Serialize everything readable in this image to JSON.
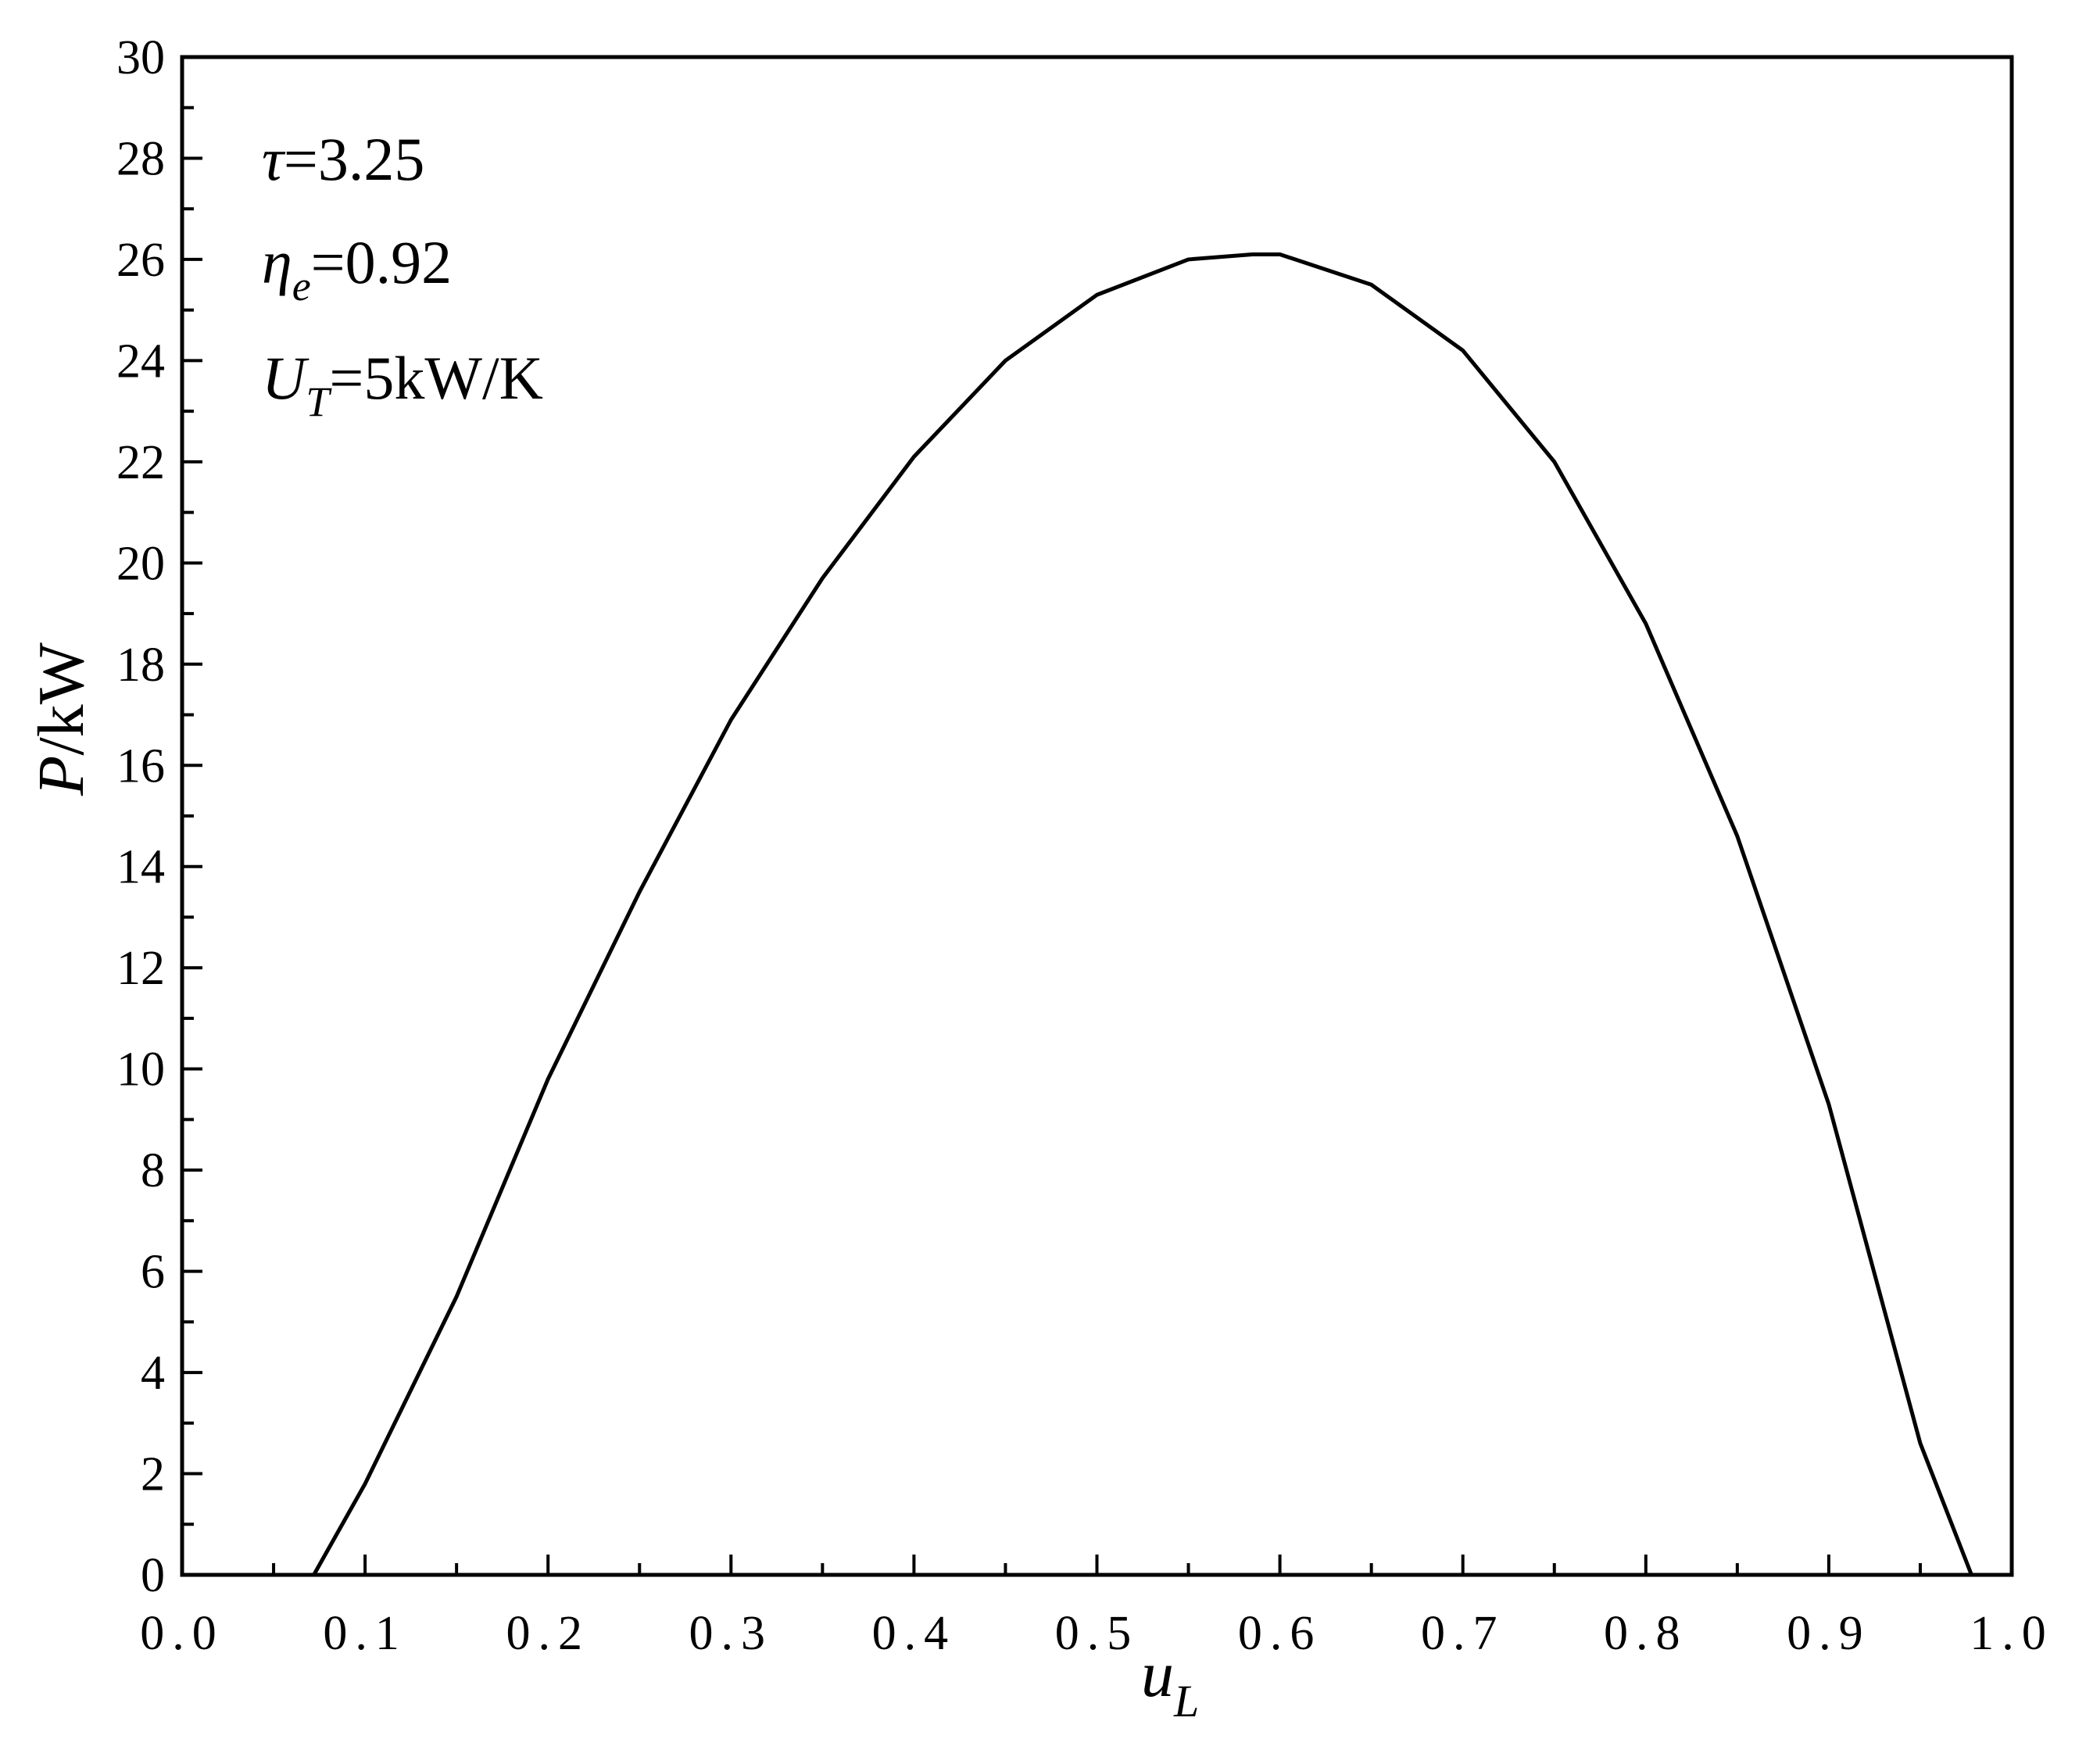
{
  "chart_data": {
    "type": "line",
    "x_label": {
      "symbol": "u",
      "subscript": "L"
    },
    "y_label": {
      "symbol": "P",
      "rest": "/kW"
    },
    "annotations": [
      {
        "symbol": "τ",
        "text": "=3.25"
      },
      {
        "symbol": "η",
        "subscript": "e",
        "text": "=0.92"
      },
      {
        "symbol": "U",
        "subscript": "T",
        "text": "=5kW/K"
      }
    ],
    "series": [
      {
        "color": "#000000",
        "x": [
          0.072,
          0.1,
          0.15,
          0.2,
          0.25,
          0.3,
          0.35,
          0.4,
          0.45,
          0.5,
          0.55,
          0.585,
          0.6,
          0.65,
          0.7,
          0.75,
          0.8,
          0.85,
          0.9,
          0.95,
          0.978
        ],
        "values": [
          0,
          1.8,
          5.5,
          9.8,
          13.5,
          16.9,
          19.7,
          22.1,
          24.0,
          25.3,
          26.0,
          26.1,
          26.1,
          25.5,
          24.2,
          22.0,
          18.8,
          14.6,
          9.3,
          2.6,
          0
        ]
      }
    ],
    "xlim": [
      0,
      1
    ],
    "ylim": [
      0,
      30
    ],
    "xticks": [
      {
        "value": 0,
        "label": "0.0"
      },
      0.1,
      0.2,
      0.3,
      0.4,
      0.5,
      0.6,
      0.7,
      0.8,
      0.9,
      {
        "value": 1,
        "label": "1.0"
      }
    ],
    "yticks": [
      0,
      2,
      4,
      6,
      8,
      10,
      12,
      14,
      16,
      18,
      20,
      22,
      24,
      26,
      28,
      30
    ],
    "xminorticks": [
      0.05,
      0.15,
      0.25,
      0.35,
      0.45,
      0.55,
      0.65,
      0.75,
      0.85,
      0.95
    ],
    "yminorticks": [
      1,
      3,
      5,
      7,
      9,
      11,
      13,
      15,
      17,
      19,
      21,
      23,
      25,
      27,
      29
    ],
    "grid": false
  }
}
